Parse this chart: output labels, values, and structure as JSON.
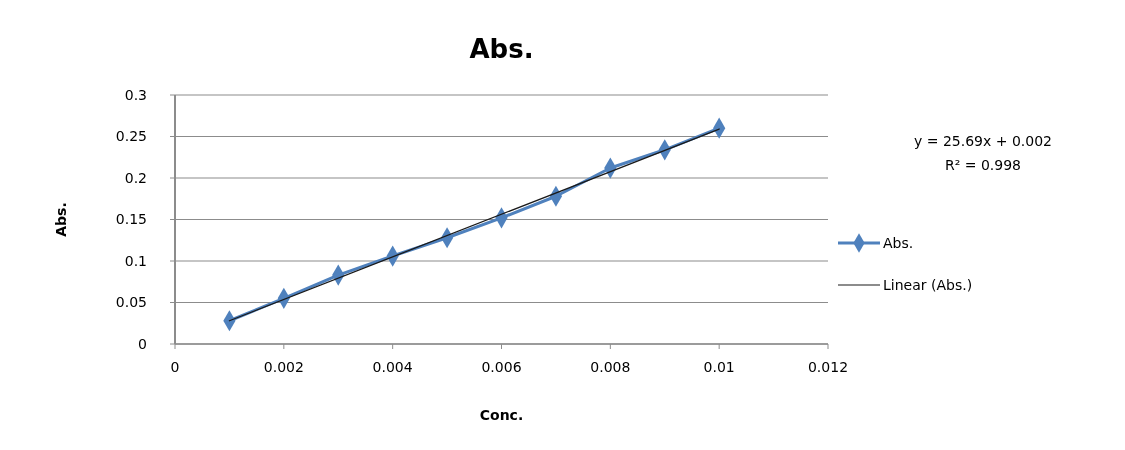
{
  "chart_data": {
    "type": "line",
    "title": "Abs.",
    "xlabel": "Conc.",
    "ylabel": "Abs.",
    "x": [
      0.001,
      0.002,
      0.003,
      0.004,
      0.005,
      0.006,
      0.007,
      0.008,
      0.009,
      0.01
    ],
    "series": [
      {
        "name": "Abs.",
        "color": "#4f81bd",
        "values": [
          0.028,
          0.055,
          0.083,
          0.106,
          0.128,
          0.152,
          0.178,
          0.212,
          0.234,
          0.26
        ],
        "marker": "diamond"
      },
      {
        "name": "Linear (Abs.)",
        "type": "line",
        "color": "#1a1a1a",
        "x": [
          0.001,
          0.01
        ],
        "values": [
          0.028,
          0.259
        ],
        "marker": "none"
      }
    ],
    "xlim": [
      0,
      0.012
    ],
    "xticks": [
      0,
      0.002,
      0.004,
      0.006,
      0.008,
      0.01,
      0.012
    ],
    "ylim": [
      0,
      0.3
    ],
    "yticks": [
      0,
      0.05,
      0.1,
      0.15,
      0.2,
      0.25,
      0.3
    ],
    "grid": "y",
    "legend": "right",
    "annotations": [
      "y = 25.69x + 0.002\nR² = 0.998"
    ]
  }
}
